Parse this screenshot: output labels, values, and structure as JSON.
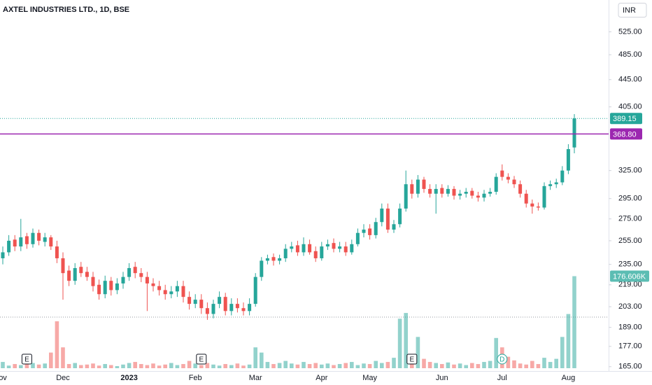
{
  "chart_data": {
    "type": "candlestick",
    "title": "AXTEL INDUSTRIES LTD., 1D, BSE",
    "currency": "INR",
    "categories": [
      "ov",
      null,
      null,
      null,
      null,
      null,
      null,
      null,
      null,
      null,
      "Dec",
      null,
      null,
      null,
      null,
      null,
      null,
      null,
      null,
      null,
      null,
      "2023",
      null,
      null,
      null,
      null,
      null,
      null,
      null,
      null,
      null,
      null,
      "Feb",
      null,
      null,
      null,
      null,
      null,
      null,
      null,
      null,
      null,
      "Mar",
      null,
      null,
      null,
      null,
      null,
      null,
      null,
      null,
      null,
      null,
      "Apr",
      null,
      null,
      null,
      null,
      null,
      null,
      null,
      "May",
      null,
      null,
      null,
      null,
      null,
      null,
      null,
      null,
      null,
      null,
      null,
      "Jun",
      null,
      null,
      null,
      null,
      null,
      null,
      null,
      null,
      null,
      "Jul",
      null,
      null,
      null,
      null,
      null,
      null,
      null,
      null,
      null,
      null,
      "Aug",
      null
    ],
    "events": [
      null,
      null,
      null,
      null,
      "E",
      null,
      null,
      null,
      null,
      null,
      null,
      null,
      null,
      null,
      null,
      null,
      null,
      null,
      null,
      null,
      null,
      null,
      null,
      null,
      null,
      null,
      null,
      null,
      null,
      null,
      null,
      null,
      null,
      "E",
      null,
      null,
      null,
      null,
      null,
      null,
      null,
      null,
      null,
      null,
      null,
      null,
      null,
      null,
      null,
      null,
      null,
      null,
      null,
      null,
      null,
      null,
      null,
      null,
      null,
      null,
      null,
      null,
      null,
      null,
      null,
      null,
      null,
      null,
      "E",
      null,
      null,
      null,
      null,
      null,
      null,
      null,
      null,
      null,
      null,
      null,
      null,
      null,
      null,
      "D",
      null,
      null,
      null,
      null,
      null,
      null,
      null,
      null,
      null,
      null,
      null,
      null
    ],
    "open": [
      240,
      245,
      256,
      250,
      259,
      252,
      262,
      254,
      258,
      250,
      240,
      230,
      222,
      233,
      229,
      225,
      219,
      212,
      222,
      215,
      220,
      225,
      233,
      228,
      225,
      220,
      218,
      215,
      212,
      214,
      218,
      210,
      205,
      208,
      202,
      198,
      205,
      210,
      200,
      205,
      202,
      200,
      205,
      225,
      238,
      241,
      238,
      240,
      248,
      251,
      245,
      252,
      246,
      240,
      250,
      253,
      248,
      250,
      245,
      252,
      262,
      266,
      260,
      272,
      285,
      265,
      270,
      285,
      310,
      300,
      315,
      305,
      300,
      306,
      300,
      305,
      298,
      300,
      303,
      298,
      296,
      300,
      302,
      325,
      318,
      315,
      310,
      300,
      290,
      287,
      286,
      308,
      310,
      312,
      325,
      352
    ],
    "high": [
      250,
      260,
      260,
      275,
      262,
      266,
      265,
      262,
      260,
      255,
      245,
      234,
      236,
      237,
      233,
      229,
      223,
      226,
      225,
      224,
      229,
      236,
      237,
      232,
      229,
      224,
      222,
      219,
      218,
      222,
      222,
      214,
      212,
      212,
      206,
      208,
      214,
      213,
      209,
      209,
      206,
      209,
      228,
      241,
      243,
      244,
      243,
      252,
      254,
      255,
      258,
      256,
      250,
      254,
      256,
      257,
      254,
      254,
      256,
      266,
      270,
      270,
      276,
      290,
      290,
      274,
      290,
      325,
      315,
      320,
      318,
      310,
      310,
      310,
      309,
      308,
      304,
      306,
      306,
      302,
      304,
      306,
      322,
      332,
      322,
      319,
      314,
      304,
      294,
      291,
      312,
      314,
      316,
      330,
      356,
      395
    ],
    "low": [
      235,
      242,
      246,
      246,
      248,
      249,
      251,
      250,
      247,
      236,
      208,
      218,
      219,
      225,
      222,
      214,
      208,
      209,
      211,
      212,
      216,
      222,
      224,
      221,
      200,
      214,
      211,
      208,
      209,
      210,
      206,
      201,
      202,
      198,
      194,
      195,
      202,
      197,
      197,
      199,
      197,
      197,
      203,
      222,
      235,
      234,
      235,
      237,
      245,
      242,
      242,
      243,
      237,
      238,
      247,
      245,
      245,
      242,
      243,
      250,
      258,
      256,
      257,
      268,
      262,
      262,
      267,
      282,
      295,
      296,
      301,
      296,
      280,
      296,
      297,
      294,
      294,
      296,
      295,
      292,
      292,
      297,
      299,
      314,
      311,
      306,
      296,
      286,
      280,
      283,
      284,
      304,
      306,
      309,
      321,
      345
    ],
    "close": [
      245,
      255,
      250,
      258,
      252,
      262,
      255,
      258,
      250,
      240,
      228,
      222,
      232,
      228,
      225,
      218,
      212,
      222,
      215,
      220,
      225,
      232,
      228,
      225,
      220,
      218,
      215,
      212,
      214,
      218,
      210,
      205,
      208,
      202,
      198,
      205,
      210,
      200,
      205,
      202,
      200,
      205,
      225,
      238,
      240,
      238,
      240,
      248,
      250,
      245,
      252,
      245,
      240,
      250,
      252,
      248,
      250,
      245,
      252,
      262,
      265,
      260,
      272,
      285,
      265,
      270,
      285,
      310,
      300,
      315,
      305,
      300,
      305,
      300,
      305,
      298,
      300,
      302,
      298,
      296,
      300,
      302,
      318,
      318,
      315,
      310,
      300,
      290,
      287,
      286,
      308,
      310,
      312,
      325,
      350,
      389.15
    ],
    "volume": [
      12,
      5,
      8,
      6,
      18,
      10,
      7,
      9,
      30,
      90,
      40,
      8,
      10,
      6,
      7,
      9,
      5,
      8,
      6,
      4,
      7,
      10,
      12,
      8,
      6,
      9,
      5,
      7,
      10,
      6,
      8,
      14,
      9,
      6,
      10,
      7,
      5,
      8,
      6,
      9,
      5,
      7,
      40,
      30,
      12,
      8,
      10,
      14,
      9,
      7,
      12,
      8,
      10,
      7,
      9,
      6,
      8,
      10,
      12,
      6,
      9,
      8,
      14,
      10,
      12,
      20,
      95,
      106,
      25,
      60,
      18,
      12,
      10,
      8,
      11,
      7,
      9,
      6,
      10,
      8,
      12,
      14,
      58,
      40,
      22,
      15,
      9,
      7,
      14,
      8,
      20,
      12,
      18,
      60,
      104,
      176.606
    ],
    "last_volume_label": "176.606K",
    "up_color": "#26a69a",
    "down_color": "#ef5350",
    "log_scale": true,
    "ylim": [
      160.6,
      586
    ],
    "yticks": [
      {
        "value": 525,
        "label": "525.00"
      },
      {
        "value": 485,
        "label": "485.00"
      },
      {
        "value": 445,
        "label": "445.00"
      },
      {
        "value": 405,
        "label": "405.00"
      },
      {
        "value": 325,
        "label": "325.00"
      },
      {
        "value": 295,
        "label": "295.00"
      },
      {
        "value": 275,
        "label": "275.00"
      },
      {
        "value": 255,
        "label": "255.00"
      },
      {
        "value": 235,
        "label": "235.00"
      },
      {
        "value": 219,
        "label": "219.00"
      },
      {
        "value": 203,
        "label": "203.00"
      },
      {
        "value": 189,
        "label": "189.00"
      },
      {
        "value": 177,
        "label": "177.00"
      },
      {
        "value": 165,
        "label": "165.00"
      }
    ],
    "vlim": [
      0,
      180
    ],
    "alert_line": {
      "value": 368.8,
      "label": "368.80",
      "color": "#9c27b0"
    }
  }
}
